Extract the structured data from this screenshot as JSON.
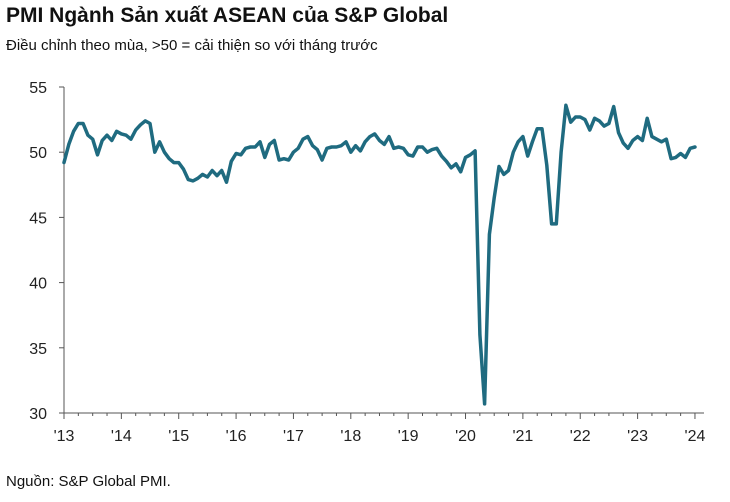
{
  "chart_data": {
    "type": "line",
    "title": "PMI Ngành Sản xuất ASEAN của S&P Global",
    "subtitle": "Điều chỉnh theo mùa, >50 = cải thiện so với tháng trước",
    "source": "Nguồn: S&P Global PMI.",
    "xlabel": "",
    "ylabel": "",
    "ylim": [
      30,
      55
    ],
    "yticks": [
      "55",
      "50",
      "45",
      "40",
      "35",
      "30"
    ],
    "ytick_values": [
      55,
      50,
      45,
      40,
      35,
      30
    ],
    "xticks": [
      "'13",
      "'14",
      "'15",
      "'16",
      "'17",
      "'18",
      "'19",
      "'20",
      "'21",
      "'22",
      "'23",
      "'24"
    ],
    "x_start_year": 2013,
    "line_color": "#1f6b80",
    "series": [
      {
        "name": "PMI Ngành Sản xuất ASEAN",
        "values": [
          49.2,
          50.6,
          51.6,
          52.2,
          52.2,
          51.3,
          51.0,
          49.8,
          50.9,
          51.3,
          50.9,
          51.6,
          51.4,
          51.3,
          51.0,
          51.7,
          52.1,
          52.4,
          52.2,
          50.0,
          50.8,
          50.0,
          49.5,
          49.2,
          49.2,
          48.7,
          47.9,
          47.8,
          48.0,
          48.3,
          48.1,
          48.6,
          48.2,
          48.6,
          47.7,
          49.3,
          49.9,
          49.8,
          50.3,
          50.4,
          50.4,
          50.8,
          49.6,
          50.6,
          50.9,
          49.4,
          49.5,
          49.4,
          50.0,
          50.3,
          51.0,
          51.2,
          50.5,
          50.2,
          49.4,
          50.3,
          50.4,
          50.4,
          50.5,
          50.8,
          50.0,
          50.5,
          50.1,
          50.8,
          51.2,
          51.4,
          50.9,
          50.6,
          51.2,
          50.3,
          50.4,
          50.3,
          49.8,
          49.7,
          50.4,
          50.4,
          50.0,
          50.2,
          50.3,
          49.7,
          49.3,
          48.8,
          49.1,
          48.5,
          49.6,
          49.8,
          50.1,
          36.0,
          30.7,
          43.7,
          46.5,
          48.9,
          48.3,
          48.6,
          50.0,
          50.8,
          51.2,
          49.7,
          50.8,
          51.8,
          51.8,
          49.0,
          44.5,
          44.5,
          50.0,
          53.6,
          52.3,
          52.7,
          52.7,
          52.5,
          51.7,
          52.6,
          52.4,
          52.0,
          52.2,
          53.5,
          51.5,
          50.7,
          50.3,
          50.9,
          51.2,
          50.9,
          52.6,
          51.2,
          51.0,
          50.8,
          51.0,
          49.5,
          49.6,
          49.9,
          49.6,
          50.3,
          50.4
        ]
      }
    ]
  }
}
